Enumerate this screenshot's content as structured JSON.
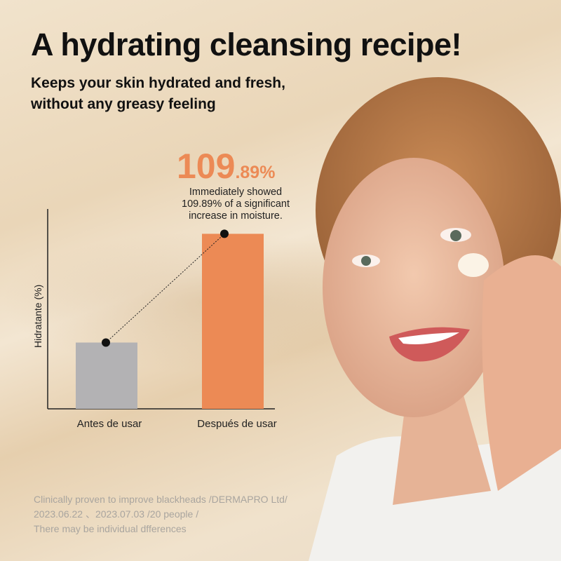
{
  "header": {
    "title": "A hydrating cleansing recipe!",
    "subtitle_line1": "Keeps your skin hydrated and fresh,",
    "subtitle_line2": "without any greasy feeling"
  },
  "callout": {
    "big_int": "109",
    "big_dec": ".89%",
    "line1": "Immediately showed",
    "line2": "109.89% of a significant",
    "line3": "increase in moisture."
  },
  "footnote": {
    "line1": "Clinically proven to improve blackheads /DERMAPRO Ltd/",
    "line2": "2023.06.22 、2023.07.03 /20 people /",
    "line3": "There may be individual dfferences"
  },
  "chart_data": {
    "type": "bar",
    "categories": [
      "Antes de usar",
      "Después de usar"
    ],
    "values": [
      100,
      209.89
    ],
    "ylabel": "Hidratante (%)",
    "xlabel": "",
    "ylim": [
      33,
      235
    ],
    "grid": false,
    "bar_colors": [
      "#b3b2b4",
      "#ec8a55"
    ],
    "connector": "dotted line between bar tops"
  },
  "colors": {
    "accent": "#ec8a55",
    "text": "#111111",
    "footnote": "#a9a59f"
  }
}
